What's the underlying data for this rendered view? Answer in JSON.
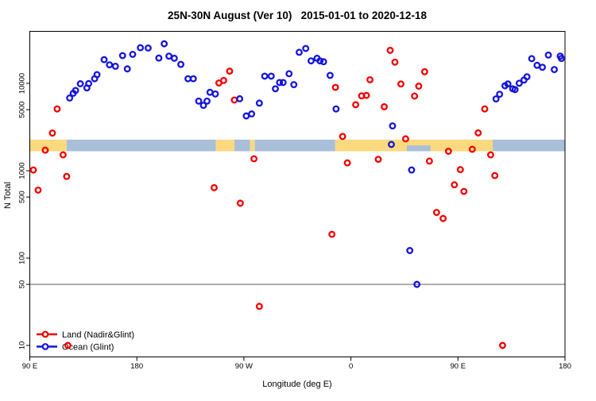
{
  "title": "25N-30N August (Ver 10)   2015-01-01 to 2020-12-18",
  "chart_data": {
    "type": "scatter",
    "title": "25N-30N August (Ver 10)   2015-01-01 to 2020-12-18",
    "xlabel": "Longitude (deg E)",
    "ylabel": "N Total",
    "x_axis": {
      "note": "continuous longitude deg E, 90 to 540 (wraps 180/-180 at 270=90W, 360=0)",
      "range": [
        90,
        540
      ],
      "ticks": [
        {
          "pos": 90,
          "label": "90 E"
        },
        {
          "pos": 180,
          "label": "180"
        },
        {
          "pos": 270,
          "label": "90 W"
        },
        {
          "pos": 360,
          "label": "0"
        },
        {
          "pos": 450,
          "label": "90 E"
        },
        {
          "pos": 540,
          "label": "180"
        }
      ]
    },
    "y_axis": {
      "scale": "log10",
      "range": [
        7.5,
        39000
      ],
      "ticks": [
        10,
        50,
        100,
        500,
        1000,
        5000,
        10000
      ]
    },
    "reference_line_y": 50,
    "grid": "off",
    "legend": {
      "position": "bottom-left",
      "items": [
        "Land (Nadir&Glint)",
        "Ocean (Glint)"
      ]
    },
    "map_band": {
      "description": "land/ocean world strip for 25N-30N",
      "n_range": [
        1670,
        2270
      ],
      "land_color": "#FBD97E",
      "ocean_color": "#A9BFD9",
      "segments": [
        {
          "from": 90,
          "to": 121,
          "surface": "land"
        },
        {
          "from": 121,
          "to": 246.5,
          "surface": "ocean"
        },
        {
          "from": 246.5,
          "to": 262,
          "surface": "land"
        },
        {
          "from": 262,
          "to": 275.2,
          "surface": "ocean"
        },
        {
          "from": 275.2,
          "to": 279.2,
          "surface": "land"
        },
        {
          "from": 279.2,
          "to": 346.8,
          "surface": "ocean"
        },
        {
          "from": 346.8,
          "to": 479.2,
          "surface": "land"
        },
        {
          "from": 479.2,
          "to": 540,
          "surface": "ocean"
        }
      ],
      "notches_lower_half": [
        {
          "from": 407,
          "to": 427,
          "surface": "ocean"
        }
      ]
    },
    "series": [
      {
        "name": "Land (Nadir&Glint)",
        "color": "#F20000",
        "marker": "open-circle",
        "points": [
          [
            113,
            5100
          ],
          [
            109,
            2700
          ],
          [
            103,
            1720
          ],
          [
            118,
            1520
          ],
          [
            93,
            1020
          ],
          [
            121,
            860
          ],
          [
            97,
            600
          ],
          [
            122,
            10
          ],
          [
            245,
            640
          ],
          [
            267,
            425
          ],
          [
            249,
            10100
          ],
          [
            253,
            10800
          ],
          [
            258,
            13800
          ],
          [
            262,
            6450
          ],
          [
            278.5,
            1370
          ],
          [
            283,
            28
          ],
          [
            344,
            187
          ],
          [
            347,
            9000
          ],
          [
            353,
            2470
          ],
          [
            357,
            1230
          ],
          [
            364,
            5700
          ],
          [
            369,
            7200
          ],
          [
            373,
            7280
          ],
          [
            376,
            11000
          ],
          [
            383,
            1350
          ],
          [
            388,
            5400
          ],
          [
            393,
            23900
          ],
          [
            397,
            17500
          ],
          [
            402,
            9850
          ],
          [
            406,
            2320
          ],
          [
            413.5,
            7160
          ],
          [
            417,
            9300
          ],
          [
            422,
            13600
          ],
          [
            426,
            1290
          ],
          [
            432,
            333
          ],
          [
            437.5,
            284
          ],
          [
            442,
            1670
          ],
          [
            447,
            690
          ],
          [
            452,
            1030
          ],
          [
            455,
            580
          ],
          [
            462,
            1760
          ],
          [
            467,
            2710
          ],
          [
            472.5,
            5100
          ],
          [
            477.5,
            1520
          ],
          [
            481,
            880
          ],
          [
            487.5,
            10
          ]
        ]
      },
      {
        "name": "Ocean (Glint)",
        "color": "#1414DC",
        "marker": "open-circle",
        "points": [
          [
            123.5,
            6800
          ],
          [
            126.5,
            7700
          ],
          [
            128.5,
            8300
          ],
          [
            132.5,
            9900
          ],
          [
            138,
            8870
          ],
          [
            139.5,
            9950
          ],
          [
            144.5,
            11300
          ],
          [
            146.5,
            12600
          ],
          [
            152.5,
            18700
          ],
          [
            157,
            16300
          ],
          [
            162,
            15700
          ],
          [
            168,
            20800
          ],
          [
            172,
            14650
          ],
          [
            176.5,
            21500
          ],
          [
            183,
            25600
          ],
          [
            189.5,
            25400
          ],
          [
            198.5,
            19500
          ],
          [
            203,
            28400
          ],
          [
            207,
            20500
          ],
          [
            211.5,
            19400
          ],
          [
            217,
            16500
          ],
          [
            223,
            11300
          ],
          [
            227.5,
            11300
          ],
          [
            232,
            6270
          ],
          [
            236,
            5600
          ],
          [
            239,
            6270
          ],
          [
            241.5,
            7900
          ],
          [
            246,
            7570
          ],
          [
            266.5,
            6670
          ],
          [
            272,
            4240
          ],
          [
            276.5,
            4470
          ],
          [
            283,
            5940
          ],
          [
            287.5,
            12100
          ],
          [
            293,
            12100
          ],
          [
            296.5,
            8680
          ],
          [
            300,
            10230
          ],
          [
            303,
            10230
          ],
          [
            308,
            12900
          ],
          [
            312,
            9680
          ],
          [
            316.5,
            22700
          ],
          [
            322,
            25100
          ],
          [
            326.5,
            18100
          ],
          [
            331.5,
            19400
          ],
          [
            334,
            18100
          ],
          [
            337,
            17700
          ],
          [
            342.5,
            12350
          ],
          [
            347.5,
            5100
          ],
          [
            394,
            2000
          ],
          [
            395,
            3260
          ],
          [
            409.5,
            122
          ],
          [
            411,
            1020
          ],
          [
            415.5,
            50
          ],
          [
            482,
            6640
          ],
          [
            485,
            7510
          ],
          [
            489.5,
            9390
          ],
          [
            492,
            9850
          ],
          [
            496,
            8680
          ],
          [
            498,
            8490
          ],
          [
            501.5,
            10040
          ],
          [
            505.5,
            10920
          ],
          [
            508,
            11900
          ],
          [
            512,
            19200
          ],
          [
            516.5,
            16100
          ],
          [
            521,
            15300
          ],
          [
            526,
            21100
          ],
          [
            531,
            14400
          ],
          [
            536,
            20500
          ],
          [
            537,
            19300
          ]
        ]
      }
    ],
    "colors": {
      "land_series": "#F20000",
      "ocean_series": "#1414DC",
      "reference_line": "#808080",
      "axis": "#000000"
    }
  }
}
